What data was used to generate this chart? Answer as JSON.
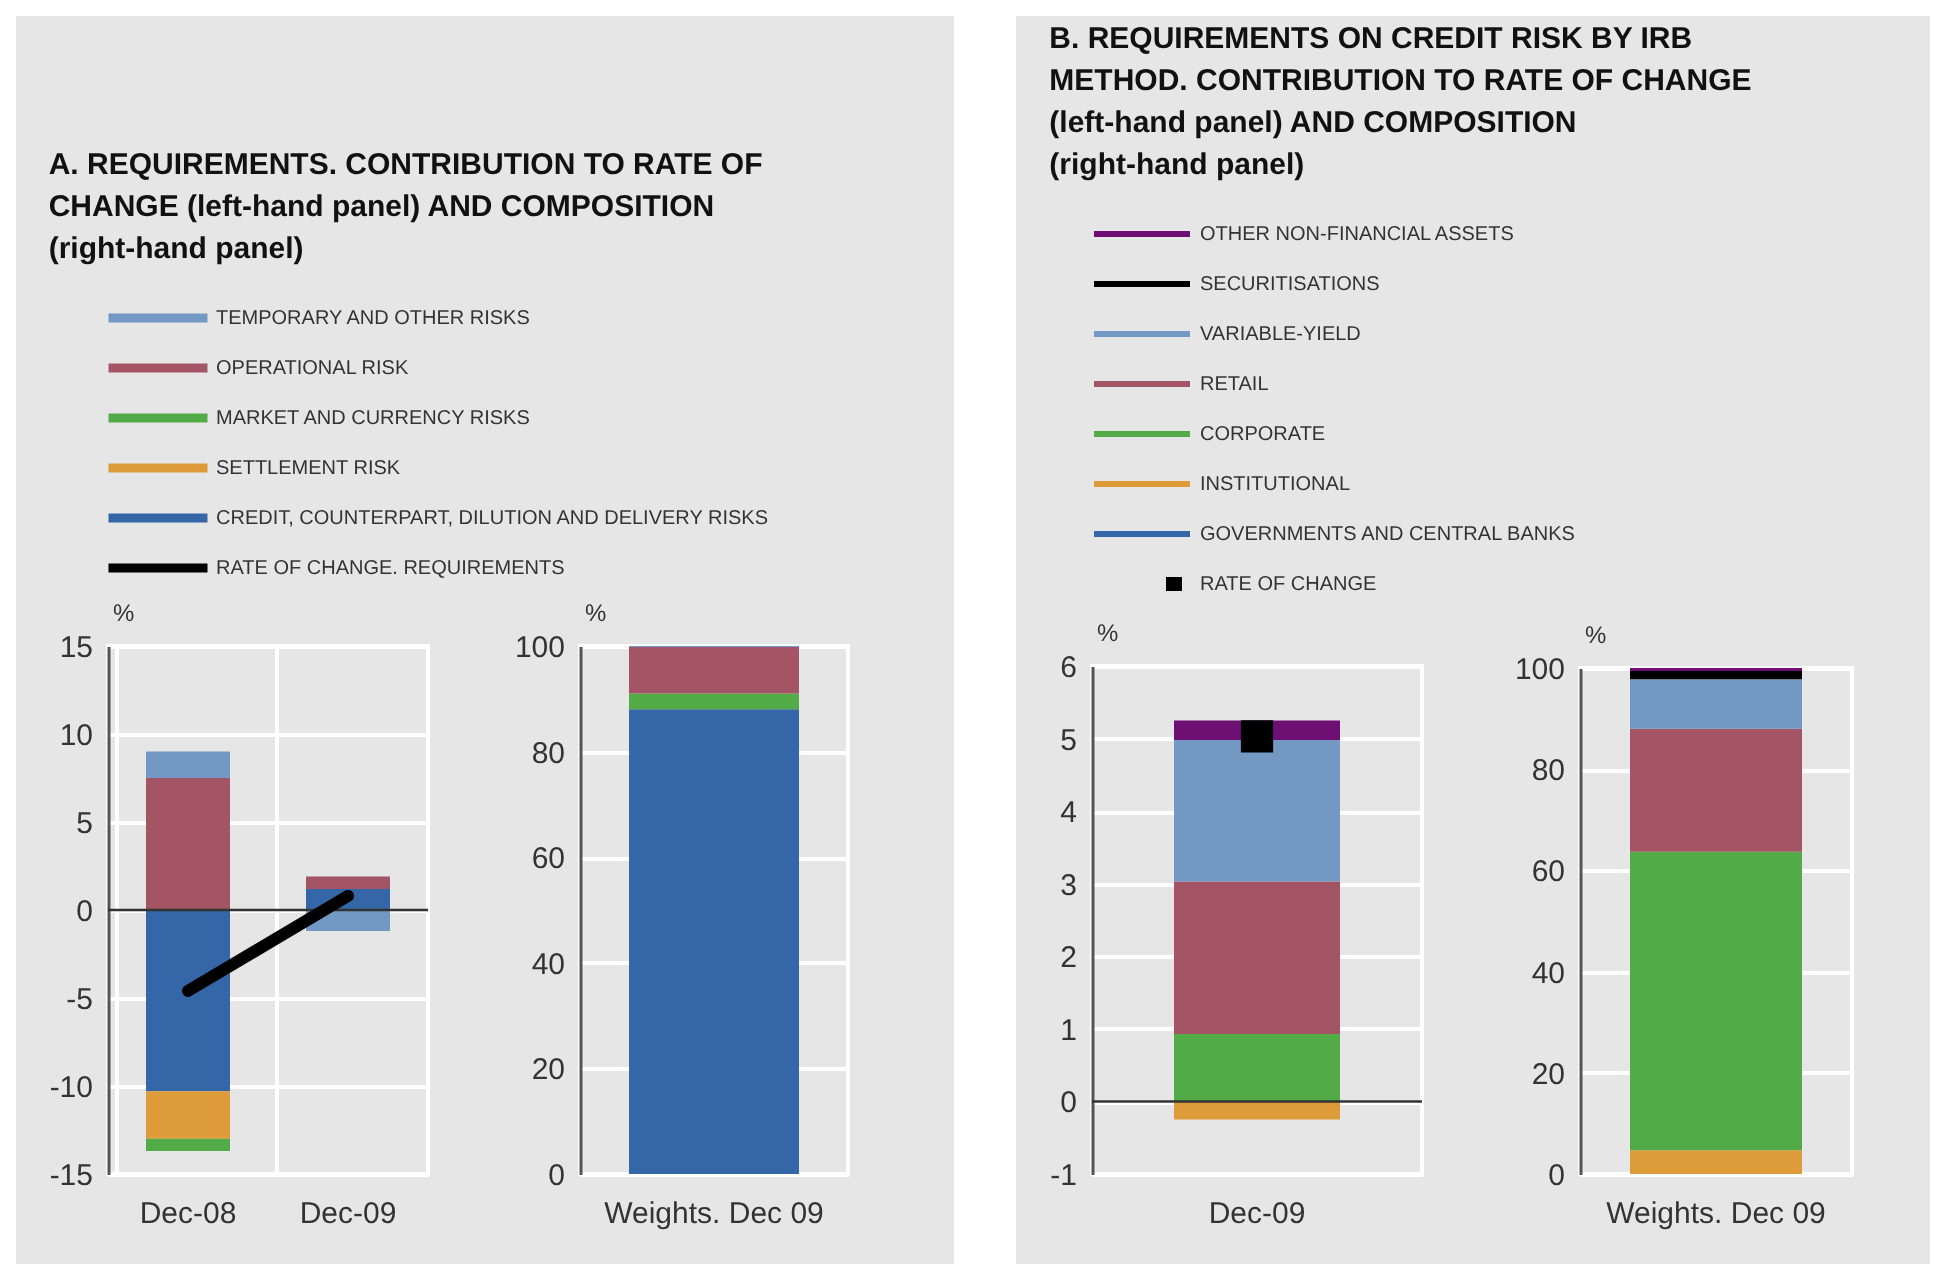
{
  "chart_data": [
    {
      "type": "bar",
      "stacked": true,
      "title": "A. REQUIREMENTS. CONTRIBUTION TO RATE OF CHANGE (left-hand panel) AND COMPOSITION (right-hand panel)",
      "ylabel": "%",
      "categories": [
        "Dec-08",
        "Dec-09"
      ],
      "ylim": [
        -15,
        15
      ],
      "yticks": [
        -15,
        -10,
        -5,
        0,
        5,
        10,
        15
      ],
      "grid": true,
      "legend": "top",
      "ref_lines": [
        {
          "axis": "y",
          "value": 0,
          "color": "#333333"
        }
      ],
      "series": [
        {
          "name": "CREDIT, COUNTERPART, DILUTION AND DELIVERY RISKS",
          "color": "#3567a8",
          "values": [
            -10.3,
            1.2
          ]
        },
        {
          "name": "SETTLEMENT RISK",
          "color": "#de9b3a",
          "values": [
            -2.7,
            0
          ]
        },
        {
          "name": "MARKET AND CURRENCY RISKS",
          "color": "#52ab46",
          "values": [
            -0.7,
            0
          ]
        },
        {
          "name": "OPERATIONAL RISK",
          "color": "#a35566",
          "values": [
            7.5,
            0.7
          ]
        },
        {
          "name": "TEMPORARY AND OTHER RISKS",
          "color": "#7498c4",
          "values": [
            1.5,
            -1.2
          ]
        },
        {
          "name": "RATE OF CHANGE. REQUIREMENTS",
          "type": "line",
          "color": "#000000",
          "values": [
            -4.6,
            0.8
          ]
        }
      ]
    },
    {
      "type": "bar",
      "stacked": true,
      "ylabel": "%",
      "categories": [
        "Weights. Dec 09"
      ],
      "ylim": [
        0,
        100
      ],
      "yticks": [
        0,
        20,
        40,
        60,
        80,
        100
      ],
      "grid": "y",
      "series": [
        {
          "color": "#3567a8",
          "values": [
            88
          ]
        },
        {
          "color": "#de9b3a",
          "values": [
            0
          ]
        },
        {
          "color": "#52ab46",
          "values": [
            3
          ]
        },
        {
          "color": "#a35566",
          "values": [
            8.8
          ]
        },
        {
          "color": "#7498c4",
          "values": [
            0.2
          ]
        }
      ]
    },
    {
      "type": "bar",
      "stacked": true,
      "title": "B. REQUIREMENTS ON CREDIT RISK BY IRB METHOD. CONTRIBUTION TO RATE OF CHANGE (left-hand panel) AND COMPOSITION (right-hand panel)",
      "ylabel": "%",
      "categories": [
        "Dec-09"
      ],
      "ylim": [
        -1,
        6
      ],
      "yticks": [
        -1,
        0,
        1,
        2,
        3,
        4,
        5,
        6
      ],
      "grid": "y",
      "legend": "top",
      "marker": "square",
      "ref_lines": [
        {
          "axis": "y",
          "value": 0,
          "color": "#333333"
        }
      ],
      "series": [
        {
          "name": "GOVERNMENTS AND CENTRAL BANKS",
          "color": "#3567a8",
          "values": [
            0
          ]
        },
        {
          "name": "INSTITUTIONAL",
          "color": "#de9b3a",
          "values": [
            -0.25
          ]
        },
        {
          "name": "CORPORATE",
          "color": "#52ab46",
          "values": [
            0.93
          ]
        },
        {
          "name": "RETAIL",
          "color": "#a35566",
          "values": [
            2.1
          ]
        },
        {
          "name": "VARIABLE-YIELD",
          "color": "#7498c4",
          "values": [
            1.95
          ]
        },
        {
          "name": "SECURITISATIONS",
          "color": "#000000",
          "values": [
            0
          ]
        },
        {
          "name": "OTHER NON-FINANCIAL ASSETS",
          "color": "#6e0f74",
          "values": [
            0.27
          ]
        },
        {
          "name": "RATE OF CHANGE",
          "type": "scatter",
          "color": "#000000",
          "values": [
            5.03
          ]
        }
      ]
    },
    {
      "type": "bar",
      "stacked": true,
      "ylabel": "%",
      "categories": [
        "Weights. Dec 09"
      ],
      "ylim": [
        0,
        100
      ],
      "yticks": [
        0,
        20,
        40,
        60,
        80,
        100
      ],
      "grid": "y",
      "series": [
        {
          "color": "#3567a8",
          "values": [
            0
          ]
        },
        {
          "color": "#de9b3a",
          "values": [
            4.7
          ]
        },
        {
          "color": "#52ab46",
          "values": [
            59
          ]
        },
        {
          "color": "#a35566",
          "values": [
            24.3
          ]
        },
        {
          "color": "#7498c4",
          "values": [
            9.8
          ]
        },
        {
          "color": "#000000",
          "values": [
            1.6
          ]
        },
        {
          "color": "#6e0f74",
          "values": [
            0.6
          ]
        }
      ]
    }
  ]
}
